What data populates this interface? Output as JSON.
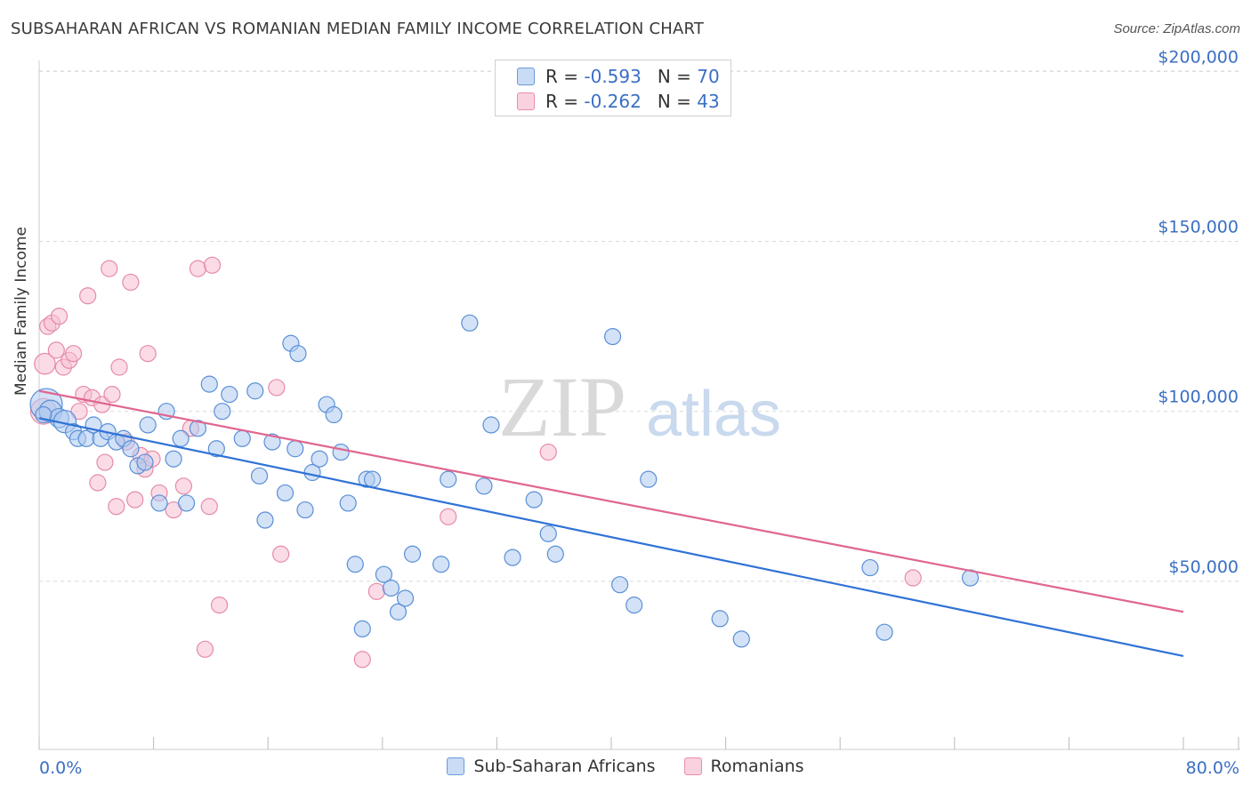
{
  "title": "SUBSAHARAN AFRICAN VS ROMANIAN MEDIAN FAMILY INCOME CORRELATION CHART",
  "source": "Source: ZipAtlas.com",
  "watermark": {
    "zip": "ZIP",
    "atlas": "atlas"
  },
  "legend_top": [
    {
      "r_label": "R =",
      "r_value": "-0.593",
      "n_label": "N =",
      "n_value": "70"
    },
    {
      "r_label": "R =",
      "r_value": "-0.262",
      "n_label": "N =",
      "n_value": "43"
    }
  ],
  "legend_bottom": [
    "Sub-Saharan Africans",
    "Romanians"
  ],
  "colors": {
    "blue_fill": "#aecbf0",
    "blue_stroke": "#5a8fd6",
    "blue_line": "#2f72d6",
    "pink_fill": "#f7bfd1",
    "pink_stroke": "#e68aa8",
    "pink_line": "#e0668f",
    "axis_label": "#3b6fc4",
    "grid": "#d9d9d9"
  },
  "chart_data": {
    "type": "scatter",
    "title": "SUBSAHARAN AFRICAN VS ROMANIAN MEDIAN FAMILY INCOME CORRELATION CHART",
    "xlabel": "",
    "ylabel": "Median Family Income",
    "xlim": [
      0,
      80
    ],
    "ylim": [
      0,
      210000
    ],
    "x_tick_labels": [
      "0.0%",
      "80.0%"
    ],
    "y_ticks": [
      50000,
      100000,
      150000,
      200000
    ],
    "y_tick_labels": [
      "$50,000",
      "$100,000",
      "$150,000",
      "$200,000"
    ],
    "grid": true,
    "legend": "top-center",
    "series": [
      {
        "name": "Sub-Saharan Africans",
        "r": -0.593,
        "n": 70,
        "trend": [
          [
            0,
            98000
          ],
          [
            80,
            28000
          ]
        ],
        "points": [
          [
            0.5,
            102000,
            2
          ],
          [
            0.8,
            100000,
            1.4
          ],
          [
            1.4,
            98000,
            1.2
          ],
          [
            1.8,
            97000,
            1.4
          ],
          [
            2.4,
            94000,
            1
          ],
          [
            2.7,
            92000,
            1
          ],
          [
            3.3,
            92000,
            1
          ],
          [
            3.8,
            96000,
            1
          ],
          [
            4.3,
            92000,
            1
          ],
          [
            4.8,
            94000,
            1
          ],
          [
            5.4,
            91000,
            1
          ],
          [
            5.9,
            92000,
            1
          ],
          [
            6.4,
            89000,
            1
          ],
          [
            6.9,
            84000,
            1
          ],
          [
            7.4,
            85000,
            1
          ],
          [
            7.6,
            96000,
            1
          ],
          [
            8.4,
            73000,
            1
          ],
          [
            8.9,
            100000,
            1
          ],
          [
            9.4,
            86000,
            1
          ],
          [
            9.9,
            92000,
            1
          ],
          [
            10.3,
            73000,
            1
          ],
          [
            11.1,
            95000,
            1
          ],
          [
            11.9,
            108000,
            1
          ],
          [
            12.4,
            89000,
            1
          ],
          [
            12.8,
            100000,
            1
          ],
          [
            13.3,
            105000,
            1
          ],
          [
            14.2,
            92000,
            1
          ],
          [
            15.1,
            106000,
            1
          ],
          [
            15.4,
            81000,
            1
          ],
          [
            15.8,
            68000,
            1
          ],
          [
            16.3,
            91000,
            1
          ],
          [
            17.2,
            76000,
            1
          ],
          [
            17.6,
            120000,
            1
          ],
          [
            17.9,
            89000,
            1
          ],
          [
            18.1,
            117000,
            1
          ],
          [
            18.6,
            71000,
            1
          ],
          [
            19.1,
            82000,
            1
          ],
          [
            19.6,
            86000,
            1
          ],
          [
            20.1,
            102000,
            1
          ],
          [
            20.6,
            99000,
            1
          ],
          [
            21.1,
            88000,
            1
          ],
          [
            21.6,
            73000,
            1
          ],
          [
            22.1,
            55000,
            1
          ],
          [
            22.6,
            36000,
            1
          ],
          [
            22.9,
            80000,
            1
          ],
          [
            23.3,
            80000,
            1
          ],
          [
            24.1,
            52000,
            1
          ],
          [
            24.6,
            48000,
            1
          ],
          [
            25.1,
            41000,
            1
          ],
          [
            25.6,
            45000,
            1
          ],
          [
            26.1,
            58000,
            1
          ],
          [
            28.1,
            55000,
            1
          ],
          [
            28.6,
            80000,
            1
          ],
          [
            30.1,
            126000,
            1
          ],
          [
            31.1,
            78000,
            1
          ],
          [
            31.6,
            96000,
            1
          ],
          [
            33.1,
            57000,
            1
          ],
          [
            34.6,
            74000,
            1
          ],
          [
            35.6,
            64000,
            1
          ],
          [
            36.1,
            58000,
            1
          ],
          [
            40.1,
            122000,
            1
          ],
          [
            40.6,
            49000,
            1
          ],
          [
            41.6,
            43000,
            1
          ],
          [
            42.6,
            80000,
            1
          ],
          [
            47.6,
            39000,
            1
          ],
          [
            49.1,
            33000,
            1
          ],
          [
            58.1,
            54000,
            1
          ],
          [
            59.1,
            35000,
            1
          ],
          [
            65.1,
            51000,
            1
          ],
          [
            0.3,
            99000,
            1
          ]
        ]
      },
      {
        "name": "Romanians",
        "r": -0.262,
        "n": 43,
        "trend": [
          [
            0,
            106000
          ],
          [
            80,
            41000
          ]
        ],
        "points": [
          [
            0.3,
            100000,
            1.6
          ],
          [
            0.4,
            114000,
            1.3
          ],
          [
            0.6,
            125000,
            1
          ],
          [
            0.9,
            126000,
            1
          ],
          [
            1.2,
            118000,
            1
          ],
          [
            1.4,
            128000,
            1
          ],
          [
            1.7,
            113000,
            1
          ],
          [
            2.1,
            115000,
            1
          ],
          [
            2.4,
            117000,
            1
          ],
          [
            2.8,
            100000,
            1
          ],
          [
            3.1,
            105000,
            1
          ],
          [
            3.4,
            134000,
            1
          ],
          [
            3.7,
            104000,
            1
          ],
          [
            4.1,
            79000,
            1
          ],
          [
            4.4,
            102000,
            1
          ],
          [
            4.6,
            85000,
            1
          ],
          [
            4.9,
            142000,
            1
          ],
          [
            5.1,
            105000,
            1
          ],
          [
            5.4,
            72000,
            1
          ],
          [
            5.6,
            113000,
            1
          ],
          [
            6.1,
            91000,
            1
          ],
          [
            6.4,
            138000,
            1
          ],
          [
            6.7,
            74000,
            1
          ],
          [
            7.1,
            87000,
            1
          ],
          [
            7.4,
            83000,
            1
          ],
          [
            7.6,
            117000,
            1
          ],
          [
            7.9,
            86000,
            1
          ],
          [
            8.4,
            76000,
            1
          ],
          [
            9.4,
            71000,
            1
          ],
          [
            10.1,
            78000,
            1
          ],
          [
            10.6,
            95000,
            1
          ],
          [
            11.1,
            142000,
            1
          ],
          [
            11.6,
            30000,
            1
          ],
          [
            12.1,
            143000,
            1
          ],
          [
            12.6,
            43000,
            1
          ],
          [
            16.6,
            107000,
            1
          ],
          [
            16.9,
            58000,
            1
          ],
          [
            22.6,
            27000,
            1
          ],
          [
            23.6,
            47000,
            1
          ],
          [
            28.6,
            69000,
            1
          ],
          [
            35.6,
            88000,
            1
          ],
          [
            61.1,
            51000,
            1
          ],
          [
            11.9,
            72000,
            1
          ]
        ]
      }
    ]
  }
}
